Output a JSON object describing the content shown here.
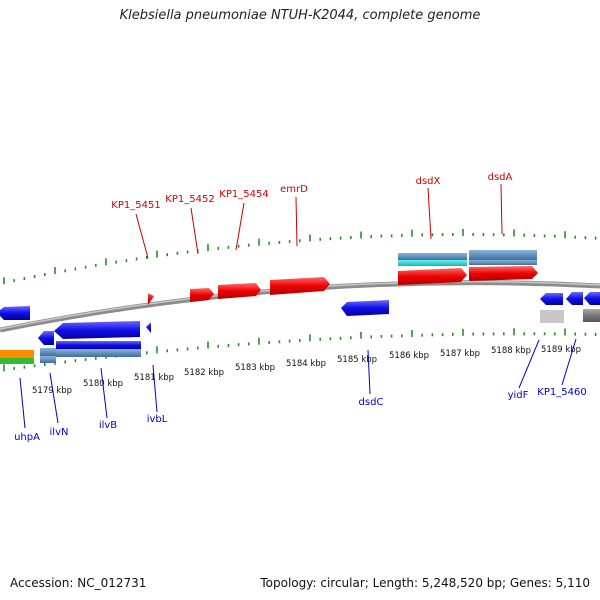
{
  "title": "Klebsiella pneumoniae NTUH-K2044, complete genome",
  "footer": {
    "accession": "Accession: NC_012731",
    "summary": "Topology: circular; Length: 5,248,520 bp; Genes: 5,110"
  },
  "colors": {
    "forward": "#ff0000",
    "reverse": "#0000ee",
    "backbone": "#8c8c8c",
    "tick": "#2e8b2e"
  },
  "scale": {
    "unit": "kbp",
    "labels": [
      "5179 kbp",
      "5180 kbp",
      "5181 kbp",
      "5182 kbp",
      "5183 kbp",
      "5184 kbp",
      "5185 kbp",
      "5186 kbp",
      "5187 kbp",
      "5188 kbp",
      "5189 kbp"
    ]
  },
  "top_labels": [
    "KP1_5451",
    "KP1_5452",
    "KP1_5454",
    "emrD",
    "dsdX",
    "dsdA"
  ],
  "bottom_labels": [
    "uhpA",
    "ilvN",
    "ilvB",
    "ivbL",
    "dsdC",
    "yidF",
    "KP1_5460"
  ]
}
